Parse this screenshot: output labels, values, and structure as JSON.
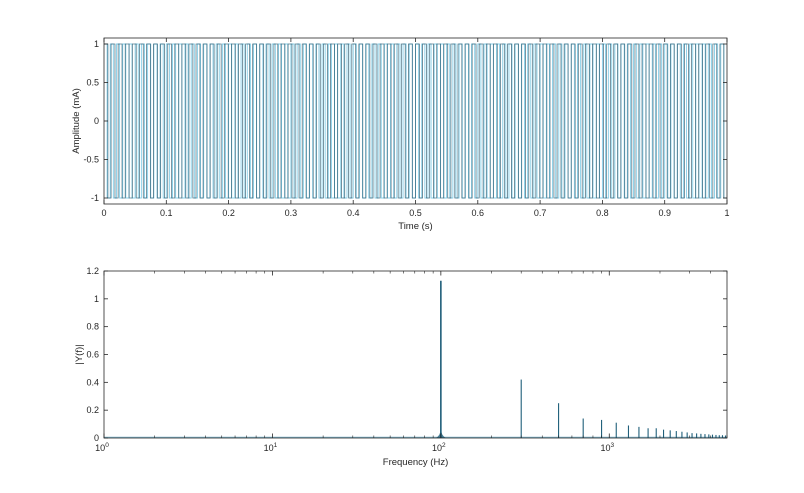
{
  "chart_data": [
    {
      "type": "line",
      "title": "",
      "xlabel": "Time (s)",
      "ylabel": "Amplitude (mA)",
      "xlim": [
        0,
        1
      ],
      "ylim": [
        -1,
        1
      ],
      "x_ticks": [
        "0",
        "0.1",
        "0.2",
        "0.3",
        "0.4",
        "0.5",
        "0.6",
        "0.7",
        "0.8",
        "0.9",
        "1"
      ],
      "y_ticks": [
        "1",
        "0.5",
        "0",
        "-0.5",
        "-1"
      ],
      "series": [
        {
          "color": "#87cfe8",
          "signal": "square wave switching between -1 and 1",
          "x": [
            0,
            0.01,
            0.01,
            0.02,
            0.02,
            0.03,
            0.03,
            0.04,
            0.04,
            0.05
          ],
          "y": [
            1,
            1,
            -1,
            -1,
            1,
            1,
            -1,
            -1,
            1,
            1
          ]
        },
        {
          "color": "#1f4f66",
          "signal": "square wave switching between -1 and 1",
          "x": [
            0,
            0.0033,
            0.0033,
            0.0067,
            0.0067,
            0.01
          ],
          "y": [
            1,
            1,
            -1,
            -1,
            1,
            1
          ]
        }
      ],
      "grid": false,
      "legend": "none"
    },
    {
      "type": "line",
      "title": "",
      "xlabel": "Frequency (Hz)",
      "ylabel": "|Y(f)|",
      "x_scale": "log",
      "xlim": [
        1,
        5000
      ],
      "ylim": [
        0,
        1.2
      ],
      "x_ticks": [
        {
          "base": "10",
          "exp": "0"
        },
        {
          "base": "10",
          "exp": "1"
        },
        {
          "base": "10",
          "exp": "2"
        },
        {
          "base": "10",
          "exp": "3"
        }
      ],
      "y_ticks": [
        "1.2",
        "1",
        "0.8",
        "0.6",
        "0.4",
        "0.2",
        "0"
      ],
      "series": [
        {
          "color": "#1f5f7a",
          "x": [
            100,
            300,
            500,
            700,
            900,
            1100,
            1300,
            1500,
            1700,
            1900,
            2100,
            2300,
            2500,
            2700,
            2900,
            3100,
            3300,
            3500,
            3700,
            3900,
            4100,
            4300,
            4500,
            4700,
            4900
          ],
          "y": [
            1.13,
            0.42,
            0.25,
            0.14,
            0.13,
            0.11,
            0.09,
            0.08,
            0.07,
            0.07,
            0.06,
            0.055,
            0.05,
            0.045,
            0.04,
            0.035,
            0.033,
            0.03,
            0.028,
            0.026,
            0.024,
            0.022,
            0.02,
            0.02,
            0.018
          ]
        }
      ],
      "grid": false,
      "legend": "none"
    }
  ]
}
